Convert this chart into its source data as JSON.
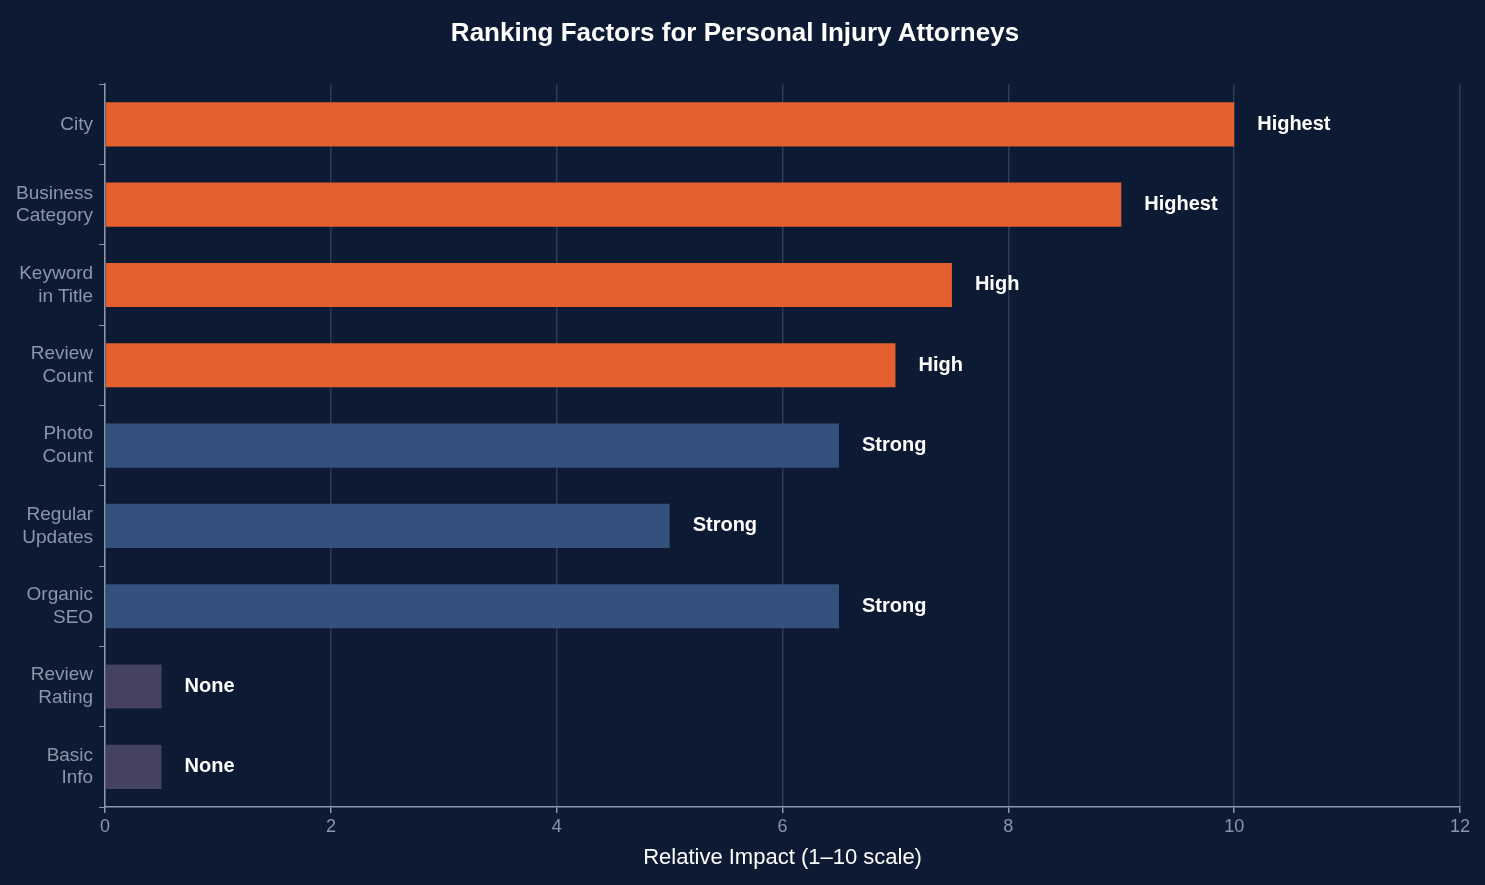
{
  "chart_data": {
    "type": "bar",
    "orientation": "horizontal",
    "title": "Ranking Factors for Personal Injury Attorneys",
    "xlabel": "Relative Impact (1–10 scale)",
    "categories": [
      "City",
      "Business Category",
      "Keyword in Title",
      "Review Count",
      "Photo Count",
      "Regular Updates",
      "Organic SEO",
      "Review Rating",
      "Basic Info"
    ],
    "values": [
      10,
      9,
      7.5,
      7,
      6.5,
      5,
      6.5,
      0.5,
      0.5
    ],
    "colors": [
      "#e5602f",
      "#e5602f",
      "#e5602f",
      "#e5602f",
      "#34507c",
      "#34507c",
      "#34507c",
      "#45425f",
      "#45425f"
    ],
    "value_labels": [
      "Highest",
      "Highest",
      "High",
      "High",
      "Strong",
      "Strong",
      "Strong",
      "None",
      "None"
    ],
    "xlim": [
      0,
      12
    ],
    "xticks": [
      0,
      2,
      4,
      6,
      8,
      10,
      12
    ],
    "grid": "x",
    "legend": false
  }
}
